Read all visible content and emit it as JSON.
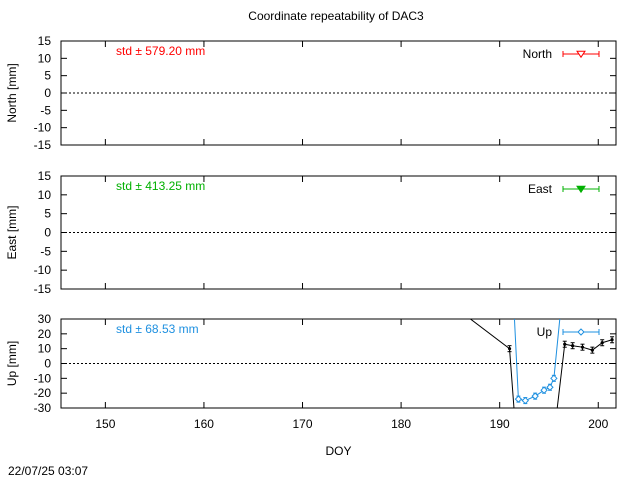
{
  "title": "Coordinate repeatability of DAC3",
  "timestamp": "22/07/25 03:07",
  "colors": {
    "north": "#ff0000",
    "east": "#00b000",
    "up": "#1e90e0",
    "daily": "#000000"
  },
  "chart_data": [
    {
      "type": "line",
      "xlabel": "DOY",
      "ylabel": "North [mm]",
      "xlim": [
        145.5,
        201.8
      ],
      "ylim": [
        -15,
        15
      ],
      "yticks": [
        "15",
        "10",
        "5",
        "0",
        "-5",
        "-10",
        "-15"
      ],
      "xtick_labels_shown": false,
      "zero_line": true,
      "grid": false,
      "std_label": "std ± 579.20 mm",
      "legend_position": "top-right",
      "series": [
        {
          "name": "North",
          "x": [],
          "y": []
        }
      ]
    },
    {
      "type": "line",
      "xlabel": "DOY",
      "ylabel": "East [mm]",
      "xlim": [
        145.5,
        201.8
      ],
      "ylim": [
        -15,
        15
      ],
      "yticks": [
        "15",
        "10",
        "5",
        "0",
        "-5",
        "-10",
        "-15"
      ],
      "xtick_labels_shown": false,
      "zero_line": true,
      "grid": false,
      "std_label": "std ± 413.25 mm",
      "legend_position": "top-right",
      "series": [
        {
          "name": "East",
          "x": [],
          "y": []
        }
      ]
    },
    {
      "type": "line",
      "xlabel": "DOY",
      "ylabel": "Up [mm]",
      "xlim": [
        145.5,
        201.8
      ],
      "ylim": [
        -30,
        30
      ],
      "yticks": [
        "30",
        "20",
        "10",
        "0",
        "-10",
        "-20",
        "-30"
      ],
      "xticks": [
        "150",
        "160",
        "170",
        "180",
        "190",
        "200"
      ],
      "xtick_labels_shown": true,
      "zero_line": true,
      "grid": false,
      "std_label": "std ± 68.53 mm",
      "legend_position": "top-right",
      "series": [
        {
          "name": "Up",
          "x": [
            191.9,
            192.6,
            193.6,
            194.5,
            195.1,
            195.5
          ],
          "y": [
            -24,
            -25,
            -22,
            -18,
            -16,
            -10
          ]
        },
        {
          "name": "",
          "x": [
            191.0,
            196.6,
            197.4,
            198.4,
            199.4,
            200.4,
            201.4
          ],
          "y": [
            10,
            13,
            12,
            11,
            9,
            14,
            16
          ]
        }
      ]
    }
  ]
}
